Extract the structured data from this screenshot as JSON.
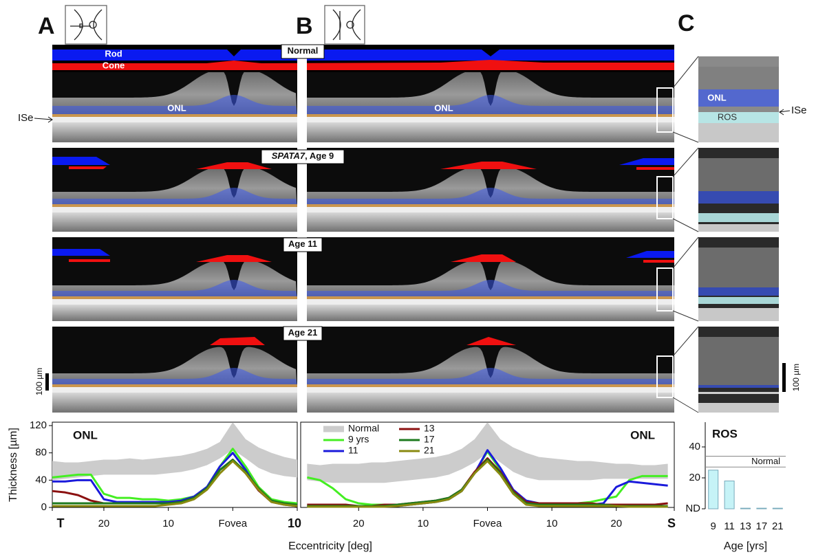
{
  "figure": {
    "panel_labels": [
      "A",
      "B",
      "C"
    ],
    "rod": "Rod",
    "cone": "Cone",
    "onl": "ONL",
    "ise": "ISe",
    "ros": "ROS",
    "scale": "100 µm",
    "rows": [
      {
        "label": "Normal"
      },
      {
        "gene": "SPATA7",
        "label": ", Age 9"
      },
      {
        "label": "Age 11"
      },
      {
        "label": "Age 21"
      }
    ]
  },
  "chart_data": [
    {
      "type": "line",
      "title": "ONL",
      "ylabel": "Thickness [µm]",
      "xlabel": "Eccentricity [deg]",
      "x": [
        -28,
        -26,
        -24,
        -22,
        -20,
        -18,
        -16,
        -14,
        -12,
        -10,
        -8,
        -6,
        -4,
        -2,
        0,
        2,
        4,
        6,
        8,
        10
      ],
      "xlim": [
        -28,
        10
      ],
      "ylim": [
        0,
        125
      ],
      "xticks": [
        {
          "value": -28,
          "label": "T"
        },
        {
          "value": -20,
          "label": "20"
        },
        {
          "value": -10,
          "label": "10"
        },
        {
          "value": 0,
          "label": "Fovea"
        },
        {
          "value": 10,
          "label": "10"
        }
      ],
      "yticks": [
        0,
        40,
        80,
        120
      ],
      "series": [
        {
          "color": "#cccccc",
          "upper": [
            68,
            66,
            66,
            68,
            70,
            70,
            72,
            70,
            72,
            74,
            76,
            80,
            86,
            96,
            125,
            100,
            88,
            80,
            74,
            70
          ],
          "lower": [
            40,
            42,
            44,
            46,
            48,
            48,
            48,
            48,
            48,
            50,
            52,
            56,
            62,
            72,
            85,
            72,
            58,
            50,
            46,
            44
          ]
        },
        {
          "color": "#44ee22",
          "values": [
            44,
            46,
            48,
            48,
            20,
            14,
            14,
            12,
            12,
            10,
            12,
            16,
            30,
            60,
            86,
            60,
            30,
            12,
            8,
            6
          ]
        },
        {
          "color": "#1a1adb",
          "values": [
            38,
            38,
            40,
            40,
            12,
            8,
            8,
            8,
            8,
            8,
            10,
            16,
            30,
            60,
            80,
            55,
            25,
            10,
            5,
            2
          ]
        },
        {
          "color": "#8b1010",
          "values": [
            24,
            22,
            18,
            10,
            6,
            6,
            6,
            6,
            6,
            6,
            8,
            14,
            28,
            55,
            70,
            50,
            25,
            8,
            4,
            2
          ]
        },
        {
          "color": "#1e7a1e",
          "values": [
            6,
            6,
            6,
            6,
            6,
            6,
            6,
            6,
            6,
            6,
            8,
            14,
            28,
            55,
            70,
            52,
            28,
            10,
            6,
            4
          ]
        },
        {
          "color": "#8a8a10",
          "values": [
            2,
            2,
            2,
            2,
            2,
            2,
            2,
            2,
            2,
            4,
            6,
            12,
            26,
            50,
            68,
            50,
            26,
            8,
            4,
            2
          ]
        }
      ]
    },
    {
      "type": "line",
      "title": "ONL",
      "legend": true,
      "x": [
        -28,
        -26,
        -24,
        -22,
        -20,
        -18,
        -16,
        -14,
        -12,
        -10,
        -8,
        -6,
        -4,
        -2,
        0,
        2,
        4,
        6,
        8,
        10,
        12,
        14,
        16,
        18,
        20,
        22,
        24,
        26,
        28
      ],
      "xlim": [
        -29,
        29
      ],
      "ylim": [
        0,
        125
      ],
      "xticks": [
        {
          "value": -20,
          "label": "20"
        },
        {
          "value": -10,
          "label": "10"
        },
        {
          "value": 0,
          "label": "Fovea"
        },
        {
          "value": 10,
          "label": "10"
        },
        {
          "value": 20,
          "label": "20"
        },
        {
          "value": 29,
          "label": "S"
        }
      ],
      "series": [
        {
          "name": "Normal",
          "color": "#cccccc",
          "upper": [
            64,
            62,
            64,
            64,
            64,
            66,
            66,
            68,
            70,
            72,
            74,
            78,
            86,
            100,
            125,
            100,
            88,
            80,
            74,
            72,
            70,
            68,
            68,
            66,
            64,
            64,
            62,
            62,
            64
          ],
          "lower": [
            40,
            38,
            36,
            36,
            36,
            36,
            36,
            38,
            40,
            42,
            44,
            48,
            56,
            66,
            80,
            66,
            52,
            44,
            40,
            40,
            40,
            40,
            40,
            42,
            42,
            42,
            42,
            42,
            42
          ]
        },
        {
          "name": "9 yrs",
          "color": "#44ee22",
          "values": [
            44,
            40,
            28,
            12,
            6,
            4,
            4,
            4,
            4,
            6,
            8,
            12,
            24,
            50,
            82,
            55,
            24,
            10,
            6,
            6,
            6,
            6,
            8,
            12,
            16,
            40,
            46,
            46,
            46
          ]
        },
        {
          "name": "11",
          "color": "#1a1adb",
          "values": [
            2,
            2,
            2,
            2,
            2,
            2,
            2,
            2,
            4,
            6,
            8,
            12,
            24,
            50,
            84,
            58,
            26,
            10,
            6,
            4,
            4,
            4,
            4,
            6,
            30,
            38,
            36,
            34,
            32
          ]
        },
        {
          "name": "13",
          "color": "#8b1010",
          "values": [
            4,
            4,
            4,
            4,
            2,
            2,
            4,
            4,
            6,
            8,
            10,
            14,
            26,
            52,
            72,
            52,
            24,
            8,
            6,
            6,
            6,
            6,
            6,
            4,
            4,
            4,
            4,
            4,
            6
          ]
        },
        {
          "name": "17",
          "color": "#1e7a1e",
          "values": [
            2,
            2,
            2,
            2,
            2,
            2,
            2,
            4,
            6,
            8,
            10,
            14,
            26,
            50,
            70,
            50,
            22,
            6,
            4,
            4,
            4,
            4,
            4,
            4,
            2,
            2,
            2,
            2,
            2
          ]
        },
        {
          "name": "21",
          "color": "#8a8a10",
          "values": [
            1,
            1,
            1,
            1,
            1,
            1,
            1,
            2,
            4,
            6,
            8,
            12,
            24,
            50,
            68,
            48,
            20,
            4,
            2,
            2,
            2,
            2,
            2,
            2,
            2,
            1,
            1,
            1,
            1
          ]
        }
      ]
    },
    {
      "type": "bar",
      "title": "ROS",
      "xlabel": "Age [yrs]",
      "categories": [
        "9",
        "11",
        "13",
        "17",
        "21"
      ],
      "values": [
        25,
        18,
        0.4,
        0.4,
        0.4
      ],
      "color": "#c6f3f7",
      "ylim": [
        0,
        56
      ],
      "yticks": [
        {
          "value": 0,
          "label": "ND"
        },
        20,
        40
      ],
      "normal": {
        "label": "Normal",
        "range": [
          27,
          34
        ]
      }
    }
  ]
}
